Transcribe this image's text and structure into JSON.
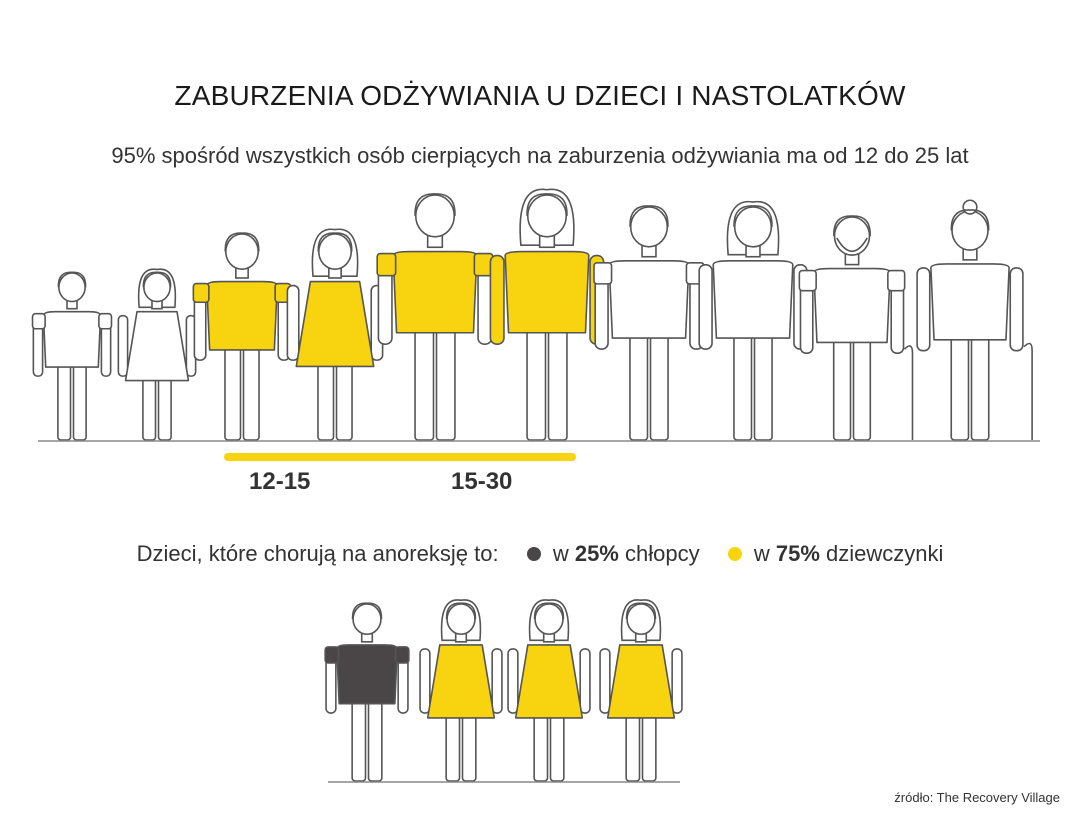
{
  "title": "ZABURZENIA ODŻYWIANIA U DZIECI I NASTOLATKÓW",
  "subtitle": "95% spośród wszystkich osób cierpiących na zaburzenia odżywiania ma od 12 do 25 lat",
  "colors": {
    "highlight": "#f7d40f",
    "boy_dark": "#4a4648",
    "outline": "#555555",
    "fill": "#ffffff"
  },
  "age_figures": [
    {
      "kind": "child-boy",
      "highlighted": false
    },
    {
      "kind": "child-girl",
      "highlighted": false
    },
    {
      "kind": "teen-boy",
      "highlighted": true
    },
    {
      "kind": "teen-girl",
      "highlighted": true
    },
    {
      "kind": "young-man",
      "highlighted": true
    },
    {
      "kind": "young-woman",
      "highlighted": true
    },
    {
      "kind": "man",
      "highlighted": false
    },
    {
      "kind": "woman",
      "highlighted": false
    },
    {
      "kind": "old-man-cane",
      "highlighted": false
    },
    {
      "kind": "old-woman-cane",
      "highlighted": false
    }
  ],
  "age_ranges": [
    "12-15",
    "15-30"
  ],
  "legend": {
    "prefix": "Dzieci, które chorują na anoreksję to:",
    "boys": {
      "pre": "w",
      "pct": "25%",
      "label": "chłopcy",
      "share": 0.25
    },
    "girls": {
      "pre": "w",
      "pct": "75%",
      "label": "dziewczynki",
      "share": 0.75
    }
  },
  "anorexia_figures": [
    {
      "kind": "boy",
      "color": "dark"
    },
    {
      "kind": "girl",
      "color": "highlight"
    },
    {
      "kind": "girl",
      "color": "highlight"
    },
    {
      "kind": "girl",
      "color": "highlight"
    }
  ],
  "source": "źródło: The Recovery Village"
}
